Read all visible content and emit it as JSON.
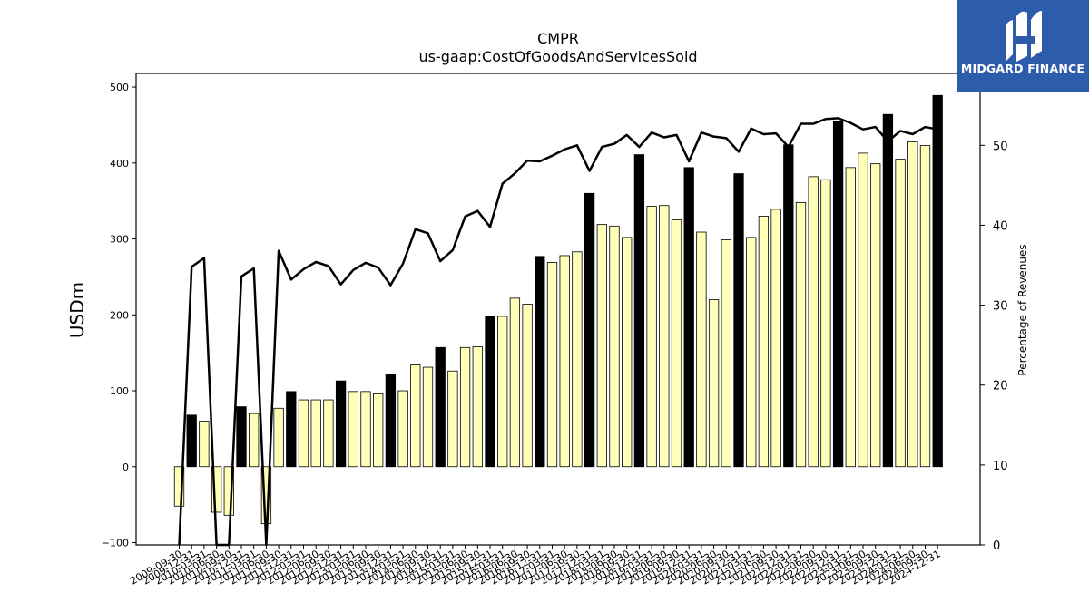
{
  "chart_data": {
    "type": "bar",
    "title": "CMPR",
    "subtitle": "us-gaap:CostOfGoodsAndServicesSold",
    "ylabel": "USDm",
    "y2label": "Percentage of Revenues",
    "ylim": [
      -103,
      518
    ],
    "y2lim": [
      0,
      59
    ],
    "yticks": [
      -100,
      0,
      100,
      200,
      300,
      400,
      500
    ],
    "y2ticks": [
      0,
      10,
      20,
      30,
      40,
      50
    ],
    "x_tick_labels": [
      "2009-09-30",
      "2009-12-31",
      "2010-03-31",
      "2010-06-30",
      "2010-09-30",
      "2010-12-31",
      "2011-03-31",
      "2011-06-30",
      "2011-09-30",
      "2011-12-31",
      "2012-03-31",
      "2012-06-30",
      "2012-09-30",
      "2012-12-31",
      "2013-03-31",
      "2013-06-30",
      "2013-09-30",
      "2013-12-31",
      "2014-03-31",
      "2014-06-30",
      "2014-09-30",
      "2014-12-31",
      "2015-03-31",
      "2015-06-30",
      "2015-09-30",
      "2015-12-31",
      "2016-03-31",
      "2016-06-30",
      "2016-09-30",
      "2016-12-31",
      "2017-03-31",
      "2017-06-30",
      "2017-09-30",
      "2017-12-31",
      "2018-03-31",
      "2018-06-30",
      "2018-09-30",
      "2018-12-31",
      "2019-03-31",
      "2019-06-30",
      "2019-09-30",
      "2019-12-31",
      "2020-03-31",
      "2020-06-30",
      "2020-09-30",
      "2020-12-31",
      "2021-03-31",
      "2021-06-30",
      "2021-09-30",
      "2021-12-31",
      "2022-03-31",
      "2022-06-30",
      "2022-09-30",
      "2022-12-31",
      "2023-03-31",
      "2023-06-30",
      "2023-09-30",
      "2023-12-31",
      "2024-03-31",
      "2024-06-30",
      "2024-09-30",
      "2024-12-31"
    ],
    "series": [
      {
        "kind": "bar",
        "values": [
          -52,
          68,
          60,
          -60,
          -64,
          79,
          70,
          -75,
          77,
          99,
          88,
          88,
          88,
          113,
          99,
          99,
          96,
          121,
          100,
          134,
          131,
          157,
          126,
          157,
          158,
          198,
          198,
          222,
          214,
          277,
          269,
          278,
          283,
          360,
          319,
          317,
          302,
          411,
          343,
          344,
          325,
          394,
          309,
          220,
          299,
          386,
          302,
          330,
          339,
          424,
          348,
          382,
          378,
          455,
          394,
          413,
          399,
          464,
          405,
          428,
          423,
          489
        ],
        "highlight_every": 4,
        "highlight_start": 1,
        "colors": {
          "normal": "#ffffb8",
          "highlight": "#000000",
          "edge": "#000000"
        }
      },
      {
        "kind": "line",
        "axis": "right",
        "color": "#000000",
        "values": [
          -3,
          34.8,
          35.9,
          -3,
          -3,
          33.6,
          34.6,
          -3,
          36.8,
          33.2,
          34.5,
          35.4,
          34.9,
          32.6,
          34.4,
          35.3,
          34.7,
          32.5,
          35.2,
          39.5,
          39.0,
          35.5,
          36.9,
          41.1,
          41.8,
          39.8,
          45.2,
          46.5,
          48.1,
          48.0,
          48.7,
          49.5,
          50.0,
          46.8,
          49.8,
          50.2,
          51.3,
          49.8,
          51.6,
          51.0,
          51.3,
          48.0,
          51.6,
          51.1,
          50.9,
          49.2,
          52.1,
          51.4,
          51.5,
          49.8,
          52.7,
          52.7,
          53.3,
          53.4,
          52.8,
          52.0,
          52.3,
          50.5,
          51.8,
          51.4,
          52.3,
          52.0
        ]
      }
    ]
  },
  "branding": {
    "logo_text": "MIDGARD FINANCE",
    "logo_icon": "midgard-finance-logo-icon",
    "logo_color": "#2d5cab"
  }
}
